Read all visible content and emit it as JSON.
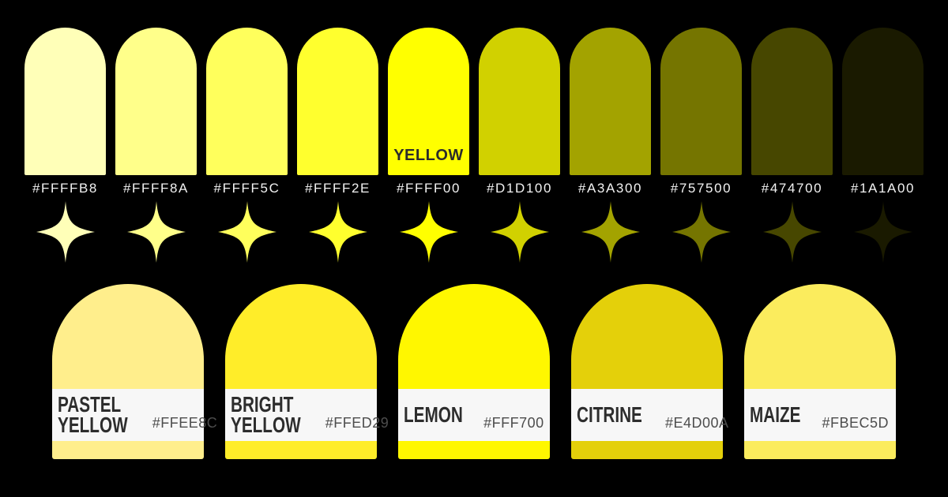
{
  "background_color": "#000000",
  "shade_row": {
    "label_text_color": "#F2F2F2",
    "highlight_label_color": "#2B2B2B",
    "swatches": [
      {
        "hex": "#FFFFB8"
      },
      {
        "hex": "#FFFF8A"
      },
      {
        "hex": "#FFFF5C"
      },
      {
        "hex": "#FFFF2E"
      },
      {
        "hex": "#FFFF00",
        "label": "YELLOW"
      },
      {
        "hex": "#D1D100"
      },
      {
        "hex": "#A3A300"
      },
      {
        "hex": "#757500"
      },
      {
        "hex": "#474700"
      },
      {
        "hex": "#1A1A00"
      }
    ]
  },
  "palette_cards": {
    "band_color": "#F7F7F7",
    "name_color": "#2D2D2D",
    "hex_color": "#4D4D4D",
    "items": [
      {
        "name_lines": [
          "PASTEL",
          "YELLOW"
        ],
        "hex": "#FFEE8C"
      },
      {
        "name_lines": [
          "BRIGHT",
          "YELLOW"
        ],
        "hex": "#FFED29"
      },
      {
        "name_lines": [
          "LEMON"
        ],
        "hex": "#FFF700"
      },
      {
        "name_lines": [
          "CITRINE"
        ],
        "hex": "#E4D00A"
      },
      {
        "name_lines": [
          "MAIZE"
        ],
        "hex": "#FBEC5D"
      }
    ]
  }
}
